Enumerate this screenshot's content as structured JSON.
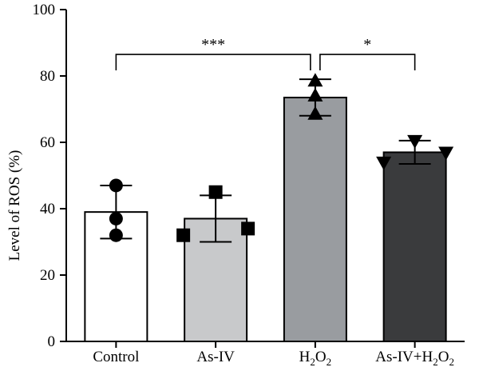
{
  "chart_data": {
    "type": "bar",
    "categories": [
      "Control",
      "As-IV",
      "H2O2",
      "As-IV+H2O2"
    ],
    "category_display": [
      {
        "main": "Control"
      },
      {
        "main": "As-IV"
      },
      {
        "main": "H",
        "sub": "2",
        "main2": "O",
        "sub2": "2"
      },
      {
        "main": "As-IV+H",
        "sub": "2",
        "main2": "O",
        "sub2": "2"
      }
    ],
    "values": [
      39,
      37,
      73.5,
      57
    ],
    "errors": [
      8,
      7,
      5.5,
      3.5
    ],
    "points": [
      [
        47,
        37,
        32
      ],
      [
        45,
        32,
        34
      ],
      [
        78.5,
        74,
        68.5
      ],
      [
        60.5,
        54,
        57
      ]
    ],
    "markers": [
      "circle",
      "square",
      "triangle-up",
      "triangle-down"
    ],
    "bar_colors": [
      "#ffffff",
      "#c8c9cb",
      "#999ca0",
      "#3a3b3d"
    ],
    "ylabel": "Level of ROS (%)",
    "xlabel": "",
    "ylim": [
      0,
      100
    ],
    "yticks": [
      0,
      20,
      40,
      60,
      80,
      100
    ],
    "significance": [
      {
        "from": 0,
        "to": 2,
        "label": "***",
        "level": 86.5
      },
      {
        "from": 2,
        "to": 3,
        "label": "*",
        "level": 86.5
      }
    ]
  }
}
